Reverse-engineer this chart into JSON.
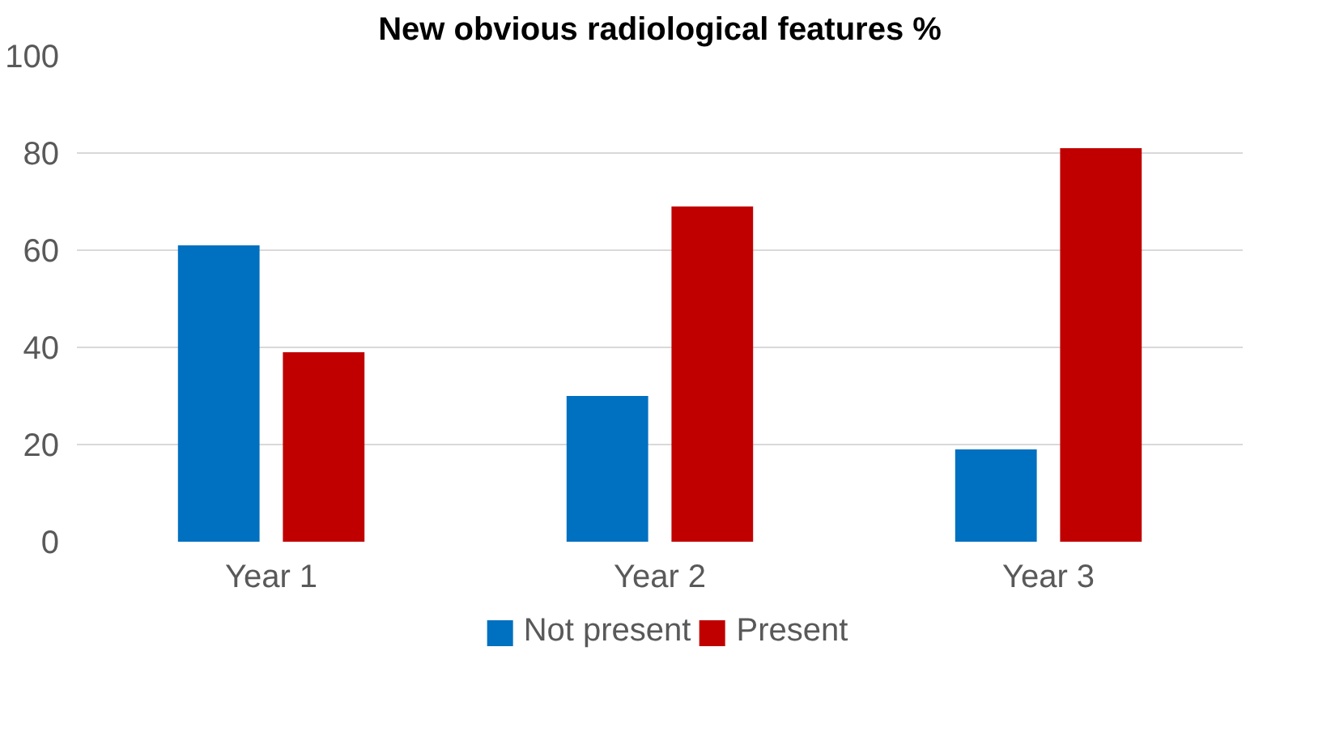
{
  "chart_data": {
    "type": "bar",
    "title": "New obvious radiological features %",
    "categories": [
      "Year 1",
      "Year 2",
      "Year 3"
    ],
    "series": [
      {
        "name": "Not present",
        "color": "#0070c0",
        "values": [
          61,
          30,
          19
        ]
      },
      {
        "name": "Present",
        "color": "#c00000",
        "values": [
          39,
          69,
          81
        ]
      }
    ],
    "ylim": [
      0,
      100
    ],
    "yticks": [
      0,
      20,
      40,
      60,
      80,
      100
    ],
    "grid": "y",
    "legend": "bottom"
  }
}
